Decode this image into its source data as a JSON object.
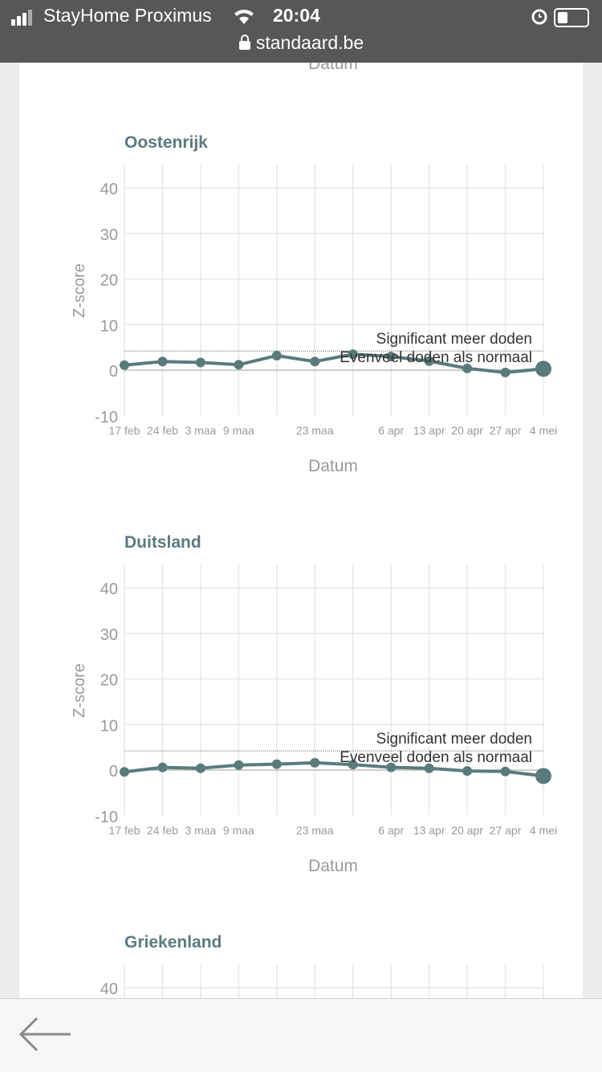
{
  "status_bar": {
    "carrier": "StayHome Proximus",
    "time": "20:04",
    "url": "standaard.be"
  },
  "top_partial_xlabel": "Datum",
  "colors": {
    "line": "#5a7b7c",
    "title": "#5a7b7c",
    "grid": "#e8e8e8",
    "axis_text": "#9a9a9a",
    "status_bg": "#575757"
  },
  "chart_data": [
    {
      "type": "line",
      "title": "Oostenrijk",
      "xlabel": "Datum",
      "ylabel": "Z-score",
      "ylim": [
        -10,
        45
      ],
      "yticks": [
        -10,
        0,
        10,
        20,
        30,
        40
      ],
      "x": [
        "17 feb",
        "24 feb",
        "3 maa",
        "9 maa",
        "",
        "23 maa",
        "",
        "6 apr",
        "13 apr",
        "20 apr",
        "27 apr",
        "4 mei"
      ],
      "values": [
        1.1,
        1.9,
        1.7,
        1.2,
        3.2,
        1.9,
        3.5,
        3.0,
        2.0,
        0.4,
        -0.5,
        0.3
      ],
      "reference_lines": [
        {
          "label": "Significant meer doden",
          "y": 4.2
        },
        {
          "label": "Evenveel doden als normaal",
          "y": 0
        }
      ],
      "grid": true
    },
    {
      "type": "line",
      "title": "Duitsland",
      "xlabel": "Datum",
      "ylabel": "Z-score",
      "ylim": [
        -10,
        45
      ],
      "yticks": [
        -10,
        0,
        10,
        20,
        30,
        40
      ],
      "x": [
        "17 feb",
        "24 feb",
        "3 maa",
        "9 maa",
        "",
        "23 maa",
        "",
        "6 apr",
        "13 apr",
        "20 apr",
        "27 apr",
        "4 mei"
      ],
      "values": [
        -0.4,
        0.6,
        0.4,
        1.1,
        1.3,
        1.6,
        1.2,
        0.6,
        0.4,
        -0.2,
        -0.3,
        -1.3
      ],
      "reference_lines": [
        {
          "label": "Significant meer doden",
          "y": 4.2
        },
        {
          "label": "Evenveel doden als normaal",
          "y": 0
        }
      ],
      "grid": true
    },
    {
      "type": "line",
      "title": "Griekenland",
      "yticks": [
        40
      ],
      "partial": true
    }
  ]
}
